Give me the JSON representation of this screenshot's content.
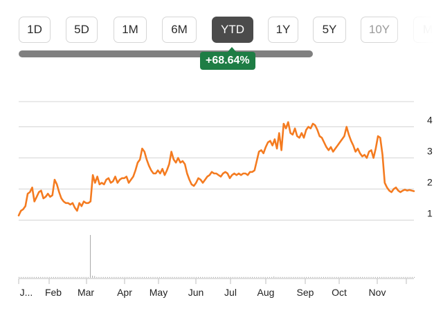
{
  "range_selector": {
    "options": [
      "1D",
      "5D",
      "1M",
      "6M",
      "YTD",
      "1Y",
      "5Y",
      "10Y",
      "M"
    ],
    "selected": "YTD"
  },
  "change": {
    "percent_label": "+68.64%"
  },
  "colors": {
    "line": "#f47b20",
    "badge": "#1e7d45",
    "active_button": "#4b4b4b",
    "gridline": "#d4d4d4",
    "volume": "#a8a8a8"
  },
  "chart_data": {
    "type": "line",
    "x_labels": [
      "J...",
      "Feb",
      "Mar",
      "Apr",
      "May",
      "Jun",
      "Jul",
      "Aug",
      "Sep",
      "Oct",
      "Nov"
    ],
    "y_ticks": [
      1,
      2,
      3,
      4
    ],
    "ylim": [
      0.9,
      4.3
    ],
    "grid": true,
    "series": [
      {
        "values": [
          1.15,
          1.3,
          1.35,
          1.45,
          1.85,
          1.9,
          2.05,
          1.6,
          1.75,
          1.9,
          1.95,
          1.7,
          1.75,
          1.85,
          1.75,
          1.8,
          2.3,
          2.15,
          1.9,
          1.7,
          1.6,
          1.55,
          1.55,
          1.5,
          1.55,
          1.4,
          1.3,
          1.55,
          1.45,
          1.6,
          1.55,
          1.55,
          1.6,
          2.45,
          2.2,
          2.4,
          2.15,
          2.2,
          2.15,
          2.3,
          2.35,
          2.2,
          2.25,
          2.4,
          2.2,
          2.3,
          2.35,
          2.35,
          2.4,
          2.2,
          2.3,
          2.4,
          2.6,
          2.85,
          2.95,
          3.3,
          3.2,
          2.95,
          2.75,
          2.6,
          2.5,
          2.5,
          2.6,
          2.5,
          2.65,
          2.45,
          2.6,
          2.8,
          3.2,
          2.95,
          2.85,
          3.0,
          2.85,
          2.9,
          2.8,
          2.5,
          2.3,
          2.15,
          2.1,
          2.2,
          2.35,
          2.3,
          2.2,
          2.3,
          2.4,
          2.45,
          2.55,
          2.5,
          2.5,
          2.45,
          2.4,
          2.5,
          2.55,
          2.5,
          2.35,
          2.45,
          2.5,
          2.45,
          2.5,
          2.45,
          2.5,
          2.5,
          2.45,
          2.55,
          2.55,
          2.6,
          2.9,
          3.2,
          3.25,
          3.15,
          3.35,
          3.5,
          3.55,
          3.4,
          3.6,
          3.3,
          3.8,
          3.25,
          4.1,
          3.95,
          4.15,
          3.8,
          3.75,
          3.95,
          3.7,
          3.65,
          3.8,
          3.65,
          3.9,
          4.0,
          3.95,
          4.1,
          4.05,
          3.9,
          3.7,
          3.65,
          3.5,
          3.35,
          3.25,
          3.35,
          3.2,
          3.3,
          3.4,
          3.5,
          3.6,
          3.7,
          4.0,
          3.75,
          3.55,
          3.4,
          3.2,
          3.3,
          3.15,
          3.05,
          3.1,
          3.0,
          3.2,
          3.25,
          3.0,
          3.3,
          3.7,
          3.65,
          3.1,
          2.2,
          2.05,
          1.95,
          1.9,
          2.0,
          2.05,
          1.95,
          1.9,
          1.95,
          1.98,
          1.95,
          1.97,
          1.95,
          1.93
        ]
      }
    ],
    "volume": {
      "values": [
        0.02,
        0.02,
        0.02,
        0.02,
        0.02,
        0.02,
        0.02,
        0.02,
        0.02,
        0.02,
        0.02,
        0.02,
        0.02,
        0.02,
        0.02,
        0.02,
        0.02,
        0.02,
        0.02,
        0.02,
        0.02,
        0.02,
        0.02,
        0.02,
        0.02,
        0.02,
        0.02,
        0.02,
        0.02,
        0.02,
        0.02,
        0.02,
        0.02,
        1.0,
        0.05,
        0.04,
        0.02,
        0.02,
        0.02,
        0.02,
        0.02,
        0.02,
        0.02,
        0.02,
        0.02,
        0.02,
        0.02,
        0.02,
        0.02,
        0.02,
        0.02,
        0.02,
        0.02,
        0.02,
        0.02,
        0.02,
        0.02,
        0.02,
        0.02,
        0.02,
        0.02,
        0.02,
        0.02,
        0.02,
        0.02,
        0.02,
        0.02,
        0.02,
        0.02,
        0.02,
        0.02,
        0.02,
        0.02,
        0.02,
        0.02,
        0.02,
        0.02,
        0.02,
        0.02,
        0.02,
        0.02,
        0.02,
        0.02,
        0.02,
        0.02,
        0.02,
        0.02,
        0.02,
        0.02,
        0.02,
        0.02,
        0.02,
        0.02,
        0.02,
        0.02,
        0.02,
        0.02,
        0.02,
        0.02,
        0.02,
        0.02,
        0.02,
        0.02,
        0.02,
        0.02,
        0.02,
        0.02,
        0.02,
        0.02,
        0.02,
        0.02,
        0.02,
        0.02,
        0.02,
        0.02,
        0.02,
        0.02,
        0.02,
        0.03,
        0.02,
        0.02,
        0.02,
        0.02,
        0.02,
        0.02,
        0.02,
        0.02,
        0.02,
        0.02,
        0.02,
        0.02,
        0.02,
        0.02,
        0.02,
        0.02,
        0.02,
        0.02,
        0.02,
        0.02,
        0.02,
        0.02,
        0.02,
        0.02,
        0.02,
        0.02,
        0.02,
        0.02,
        0.02,
        0.02,
        0.02,
        0.02,
        0.02,
        0.02,
        0.02,
        0.02,
        0.02,
        0.02,
        0.02,
        0.02,
        0.02,
        0.02,
        0.02,
        0.02,
        0.02,
        0.02,
        0.02,
        0.02,
        0.02,
        0.02,
        0.02,
        0.02,
        0.02,
        0.02,
        0.02,
        0.02,
        0.02,
        0.02,
        0.02,
        0.02,
        0.02,
        0.02,
        0.02,
        0.02,
        0.02
      ]
    }
  }
}
